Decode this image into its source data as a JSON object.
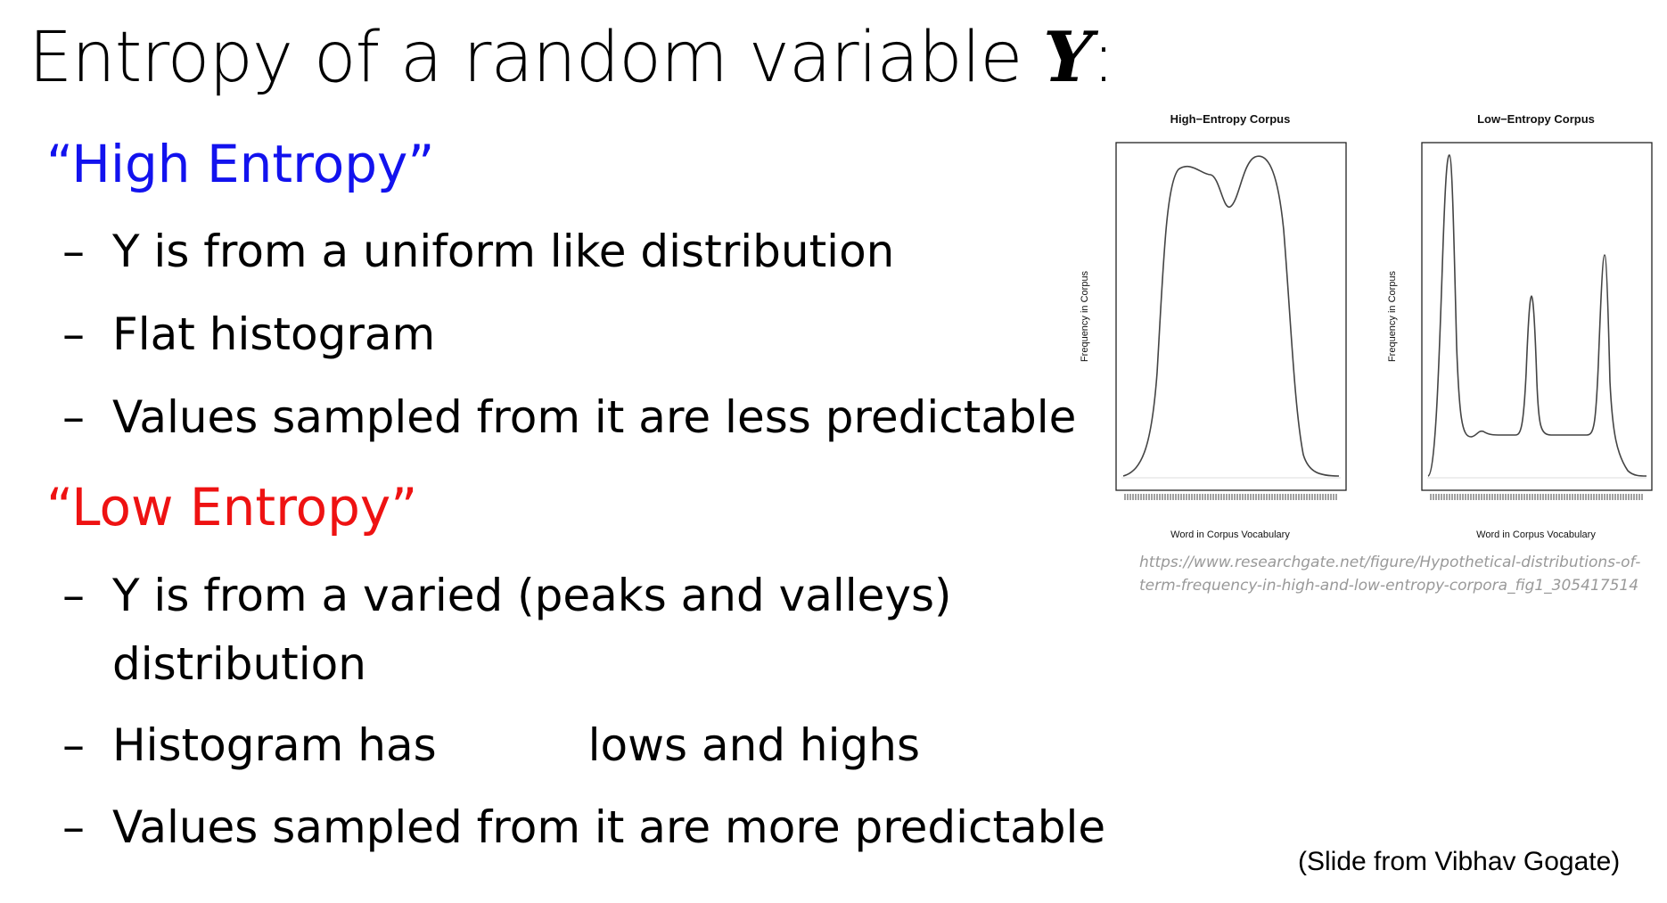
{
  "slide": {
    "title_prefix": "Entropy of a random variable ",
    "title_var": "Y",
    "title_suffix": ":",
    "high": {
      "heading": "“High Entropy”",
      "bullets": [
        "Y is from a uniform like distribution",
        "Flat histogram",
        "Values sampled from it are less predictable"
      ]
    },
    "low": {
      "heading": "“Low Entropy”",
      "bullet1_line1": "Y is from a varied (peaks and valleys)",
      "bullet1_line2": "distribution",
      "bullet2_part1": "Histogram has",
      "bullet2_part2": "lows and highs",
      "bullet3": "Values sampled from it are more predictable"
    },
    "dash": "–",
    "colors": {
      "high": "#1212ee",
      "low": "#ee1212",
      "url": "#999999"
    },
    "figure": {
      "left": {
        "title": "High−Entropy Corpus",
        "xlabel": "Word in Corpus Vocabulary",
        "ylabel": "Frequency in Corpus"
      },
      "right": {
        "title": "Low−Entropy Corpus",
        "xlabel": "Word in Corpus Vocabulary",
        "ylabel": "Frequency in Corpus"
      }
    },
    "url_line1": "https://www.researchgate.net/figure/Hypothetical-distributions-of-",
    "url_line2": "term-frequency-in-high-and-low-entropy-corpora_fig1_305417514",
    "credit": "(Slide from Vibhav Gogate)"
  }
}
